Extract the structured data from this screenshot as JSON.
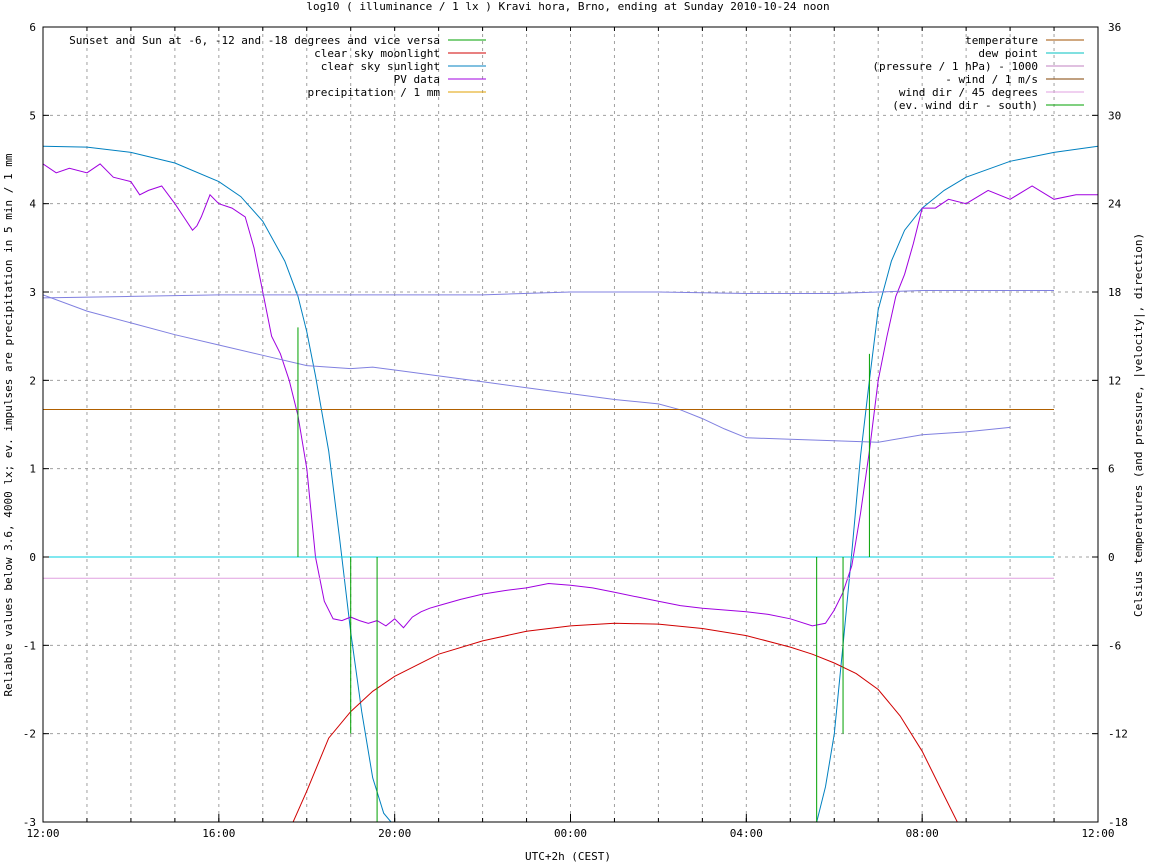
{
  "chart_data": {
    "type": "line",
    "title": "log10 ( illuminance / 1 lx ) Kravi hora, Brno, ending at Sunday 2010-10-24 noon",
    "xlabel": "UTC+2h (CEST)",
    "ylabel": "Reliable values below 3.6, 4000 lx; ev. impulses are precipitation in 5 min / 1 mm",
    "y2label": "Celsius temperatures (and pressure, |velocity|, direction)",
    "x_unit": "hours since 12:00 (UTC+2h)",
    "xlim": [
      0,
      24
    ],
    "ylim": [
      -3,
      6
    ],
    "y2lim": [
      -18,
      36
    ],
    "grid": true,
    "x_ticks": [
      {
        "value": 0,
        "label": "12:00"
      },
      {
        "value": 4,
        "label": "16:00"
      },
      {
        "value": 8,
        "label": "20:00"
      },
      {
        "value": 12,
        "label": "00:00"
      },
      {
        "value": 16,
        "label": "04:00"
      },
      {
        "value": 20,
        "label": "08:00"
      },
      {
        "value": 24,
        "label": "12:00"
      }
    ],
    "x_minor_grid_step": 1,
    "y_ticks": [
      -3,
      -2,
      -1,
      0,
      1,
      2,
      3,
      4,
      5,
      6
    ],
    "y2_ticks": [
      -18,
      -12,
      -6,
      0,
      6,
      12,
      18,
      24,
      30,
      36
    ],
    "legend_left": [
      {
        "name": "Sunset and Sun at -6, -12 and -18 degrees and vice versa",
        "color": "#00a000"
      },
      {
        "name": "clear sky moonlight",
        "color": "#d00000"
      },
      {
        "name": "clear sky sunlight",
        "color": "#0080c0"
      },
      {
        "name": "PV data",
        "color": "#a000e0"
      },
      {
        "name": "precipitation / 1 mm",
        "color": "#e0a000"
      }
    ],
    "legend_right": [
      {
        "name": "temperature",
        "color": "#a05000"
      },
      {
        "name": "dew point",
        "color": "#00c0c0"
      },
      {
        "name": "(pressure / 1 hPa) - 1000",
        "color": "#c080c0"
      },
      {
        "name": "- wind / 1 m/s",
        "color": "#804000"
      },
      {
        "name": "wind dir / 45 degrees",
        "color": "#e0a0e0"
      },
      {
        "name": "(ev. wind dir - south)",
        "color": "#00a000"
      }
    ],
    "series": [
      {
        "name": "clear sky sunlight",
        "color": "#0080c0",
        "axis": "left",
        "x": [
          0,
          1,
          2,
          3,
          4,
          4.5,
          5,
          5.5,
          5.8,
          6,
          6.2,
          6.5,
          6.75,
          7,
          7.25,
          7.5,
          7.75,
          8,
          8.1,
          17.6,
          17.8,
          18,
          18.2,
          18.4,
          18.6,
          18.8,
          19,
          19.3,
          19.6,
          20,
          20.5,
          21,
          22,
          23,
          24
        ],
        "y": [
          4.65,
          4.64,
          4.58,
          4.46,
          4.25,
          4.08,
          3.8,
          3.35,
          2.95,
          2.55,
          2.05,
          1.2,
          0.2,
          -0.85,
          -1.75,
          -2.5,
          -2.9,
          -3.05,
          -3.1,
          -3.0,
          -2.6,
          -2.0,
          -1.0,
          0.05,
          1.15,
          2.0,
          2.8,
          3.35,
          3.7,
          3.95,
          4.15,
          4.3,
          4.48,
          4.58,
          4.65
        ]
      },
      {
        "name": "clear sky moonlight",
        "color": "#d00000",
        "axis": "left",
        "x": [
          5.6,
          6,
          6.5,
          7,
          7.5,
          8,
          9,
          10,
          11,
          12,
          13,
          14,
          15,
          16,
          17,
          17.5,
          18,
          18.5,
          19,
          19.5,
          20,
          20.5,
          20.9
        ],
        "y": [
          -3.1,
          -2.65,
          -2.05,
          -1.75,
          -1.52,
          -1.35,
          -1.1,
          -0.95,
          -0.84,
          -0.78,
          -0.75,
          -0.76,
          -0.81,
          -0.89,
          -1.02,
          -1.1,
          -1.2,
          -1.32,
          -1.5,
          -1.8,
          -2.2,
          -2.7,
          -3.1
        ]
      },
      {
        "name": "PV data",
        "color": "#a000e0",
        "axis": "left",
        "x": [
          0,
          0.3,
          0.6,
          1,
          1.3,
          1.6,
          2,
          2.2,
          2.4,
          2.7,
          3,
          3.2,
          3.4,
          3.5,
          3.6,
          3.8,
          4,
          4.3,
          4.6,
          4.8,
          5,
          5.2,
          5.4,
          5.6,
          5.8,
          6,
          6.2,
          6.4,
          6.6,
          6.8,
          7,
          7.2,
          7.4,
          7.6,
          7.8,
          8,
          8.2,
          8.4,
          8.6,
          8.8,
          9,
          9.5,
          10,
          10.5,
          11,
          11.5,
          12,
          12.5,
          13,
          13.5,
          14,
          14.5,
          15,
          15.5,
          16,
          16.5,
          17,
          17.5,
          17.8,
          18,
          18.2,
          18.4,
          18.6,
          18.8,
          19,
          19.2,
          19.4,
          19.6,
          19.8,
          20,
          20.3,
          20.6,
          21,
          21.5,
          22,
          22.5,
          23,
          23.5,
          24
        ],
        "y": [
          4.45,
          4.35,
          4.4,
          4.35,
          4.45,
          4.3,
          4.25,
          4.1,
          4.15,
          4.2,
          4.0,
          3.85,
          3.7,
          3.75,
          3.85,
          4.1,
          4.0,
          3.95,
          3.85,
          3.5,
          3.0,
          2.5,
          2.3,
          2.0,
          1.6,
          1.0,
          0.0,
          -0.5,
          -0.7,
          -0.72,
          -0.68,
          -0.72,
          -0.75,
          -0.72,
          -0.78,
          -0.7,
          -0.8,
          -0.68,
          -0.62,
          -0.58,
          -0.55,
          -0.48,
          -0.42,
          -0.38,
          -0.35,
          -0.3,
          -0.32,
          -0.35,
          -0.4,
          -0.45,
          -0.5,
          -0.55,
          -0.58,
          -0.6,
          -0.62,
          -0.65,
          -0.7,
          -0.78,
          -0.75,
          -0.6,
          -0.4,
          -0.1,
          0.5,
          1.2,
          2.0,
          2.5,
          2.95,
          3.2,
          3.55,
          3.95,
          3.95,
          4.05,
          4.0,
          4.15,
          4.05,
          4.2,
          4.05,
          4.1,
          4.1
        ]
      },
      {
        "name": "temperature",
        "color": "#8080e0",
        "axis": "right",
        "x": [
          0,
          1,
          2,
          3,
          4,
          5,
          6,
          7,
          7.5,
          8,
          9,
          10,
          11,
          12,
          13,
          14,
          14.5,
          15,
          15.5,
          16,
          17,
          18,
          19,
          20,
          21,
          22
        ],
        "y": [
          17.8,
          16.7,
          15.9,
          15.1,
          14.4,
          13.7,
          13.0,
          12.8,
          12.9,
          12.7,
          12.3,
          11.9,
          11.5,
          11.1,
          10.7,
          10.4,
          10.0,
          9.4,
          8.7,
          8.1,
          8.0,
          7.9,
          7.8,
          8.3,
          8.5,
          8.8
        ]
      },
      {
        "name": "(pressure / 1 hPa) - 1000",
        "color": "#8080e0",
        "axis": "right",
        "x": [
          0,
          2,
          4,
          6,
          8,
          10,
          12,
          14,
          16,
          18,
          20,
          22,
          23
        ],
        "y": [
          17.6,
          17.7,
          17.8,
          17.8,
          17.8,
          17.8,
          18.0,
          18.0,
          17.9,
          17.9,
          18.1,
          18.1,
          18.1
        ]
      },
      {
        "name": "- wind / 1 m/s",
        "color": "#b06000",
        "axis": "left",
        "x": [
          0,
          23
        ],
        "y": [
          1.67,
          1.67
        ]
      },
      {
        "name": "dew point",
        "color": "#00d0e0",
        "axis": "left",
        "x": [
          0,
          23
        ],
        "y": [
          0,
          0
        ]
      },
      {
        "name": "wind dir / 45 degrees",
        "color": "#e0a0e0",
        "axis": "left",
        "x": [
          0,
          23
        ],
        "y": [
          -0.24,
          -0.24
        ]
      }
    ],
    "impulses": {
      "name": "Sunset and Sun at -6, -12 and -18 degrees and vice versa",
      "color": "#00a000",
      "base": 0,
      "items": [
        {
          "x": 5.8,
          "y": 2.6
        },
        {
          "x": 7.0,
          "y": -2.0
        },
        {
          "x": 7.6,
          "y": -3.0
        },
        {
          "x": 17.6,
          "y": -3.0
        },
        {
          "x": 18.2,
          "y": -2.0
        },
        {
          "x": 18.8,
          "y": 2.3
        }
      ]
    }
  }
}
